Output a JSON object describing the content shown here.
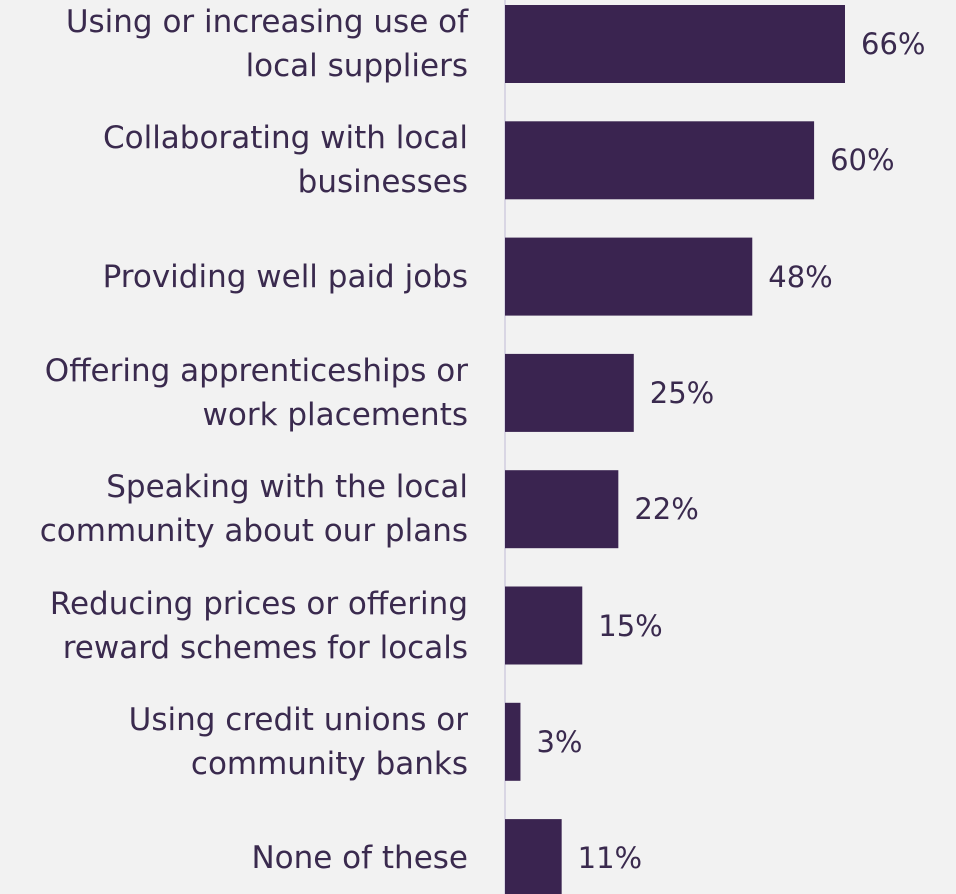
{
  "chart_data": {
    "type": "bar",
    "orientation": "horizontal",
    "categories": [
      "Using or increasing use of\nlocal suppliers",
      "Collaborating with local\nbusinesses",
      "Providing well paid jobs",
      "Offering apprenticeships or\nwork placements",
      "Speaking with the local\ncommunity about our plans",
      "Reducing prices or offering\nreward schemes for locals",
      "Using credit unions or\ncommunity banks",
      "None of these"
    ],
    "values": [
      66,
      60,
      48,
      25,
      22,
      15,
      3,
      11
    ],
    "value_labels": [
      "66%",
      "60%",
      "48%",
      "25%",
      "22%",
      "15%",
      "3%",
      "11%"
    ],
    "xlim": [
      0,
      100
    ],
    "unit": "%",
    "grid": false,
    "legend": "none",
    "colors": {
      "bar": "#3a2450",
      "text": "#3a2a4e",
      "axis": "#d9d6e4",
      "background": "#f2f2f2"
    }
  }
}
